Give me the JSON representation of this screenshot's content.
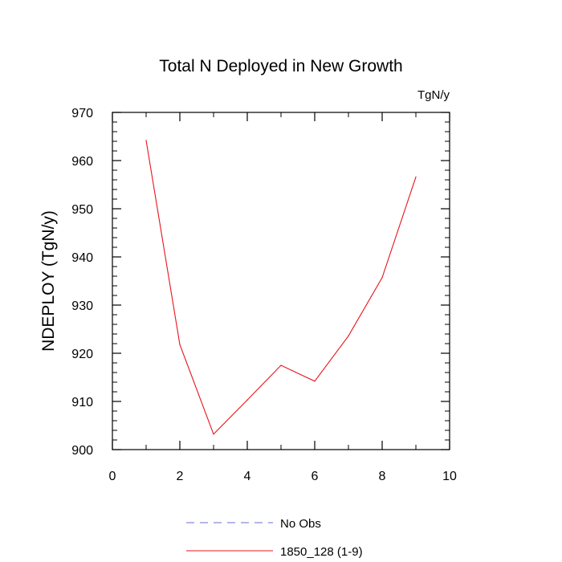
{
  "chart_data": {
    "type": "line",
    "title": "Total N Deployed in New Growth",
    "units_label": "TgN/y",
    "ylabel": "NDEPLOY  (TgN/y)",
    "xlabel": "",
    "xlim": [
      0,
      10
    ],
    "ylim": [
      900,
      970
    ],
    "xticks": [
      0,
      2,
      4,
      6,
      8,
      10
    ],
    "yticks": [
      900,
      910,
      920,
      930,
      940,
      950,
      960,
      970
    ],
    "grid": false,
    "legend_position": "bottom",
    "series": [
      {
        "name": "No Obs",
        "color": "#6b6bd6",
        "dashed": true,
        "x": [],
        "y": []
      },
      {
        "name": "1850_128 (1-9)",
        "color": "#e8131b",
        "dashed": false,
        "x": [
          1,
          2,
          3,
          4,
          5,
          6,
          7,
          8,
          9
        ],
        "y": [
          964.2,
          921.8,
          903.2,
          910.3,
          917.5,
          914.2,
          923.6,
          935.7,
          956.6
        ]
      }
    ]
  }
}
